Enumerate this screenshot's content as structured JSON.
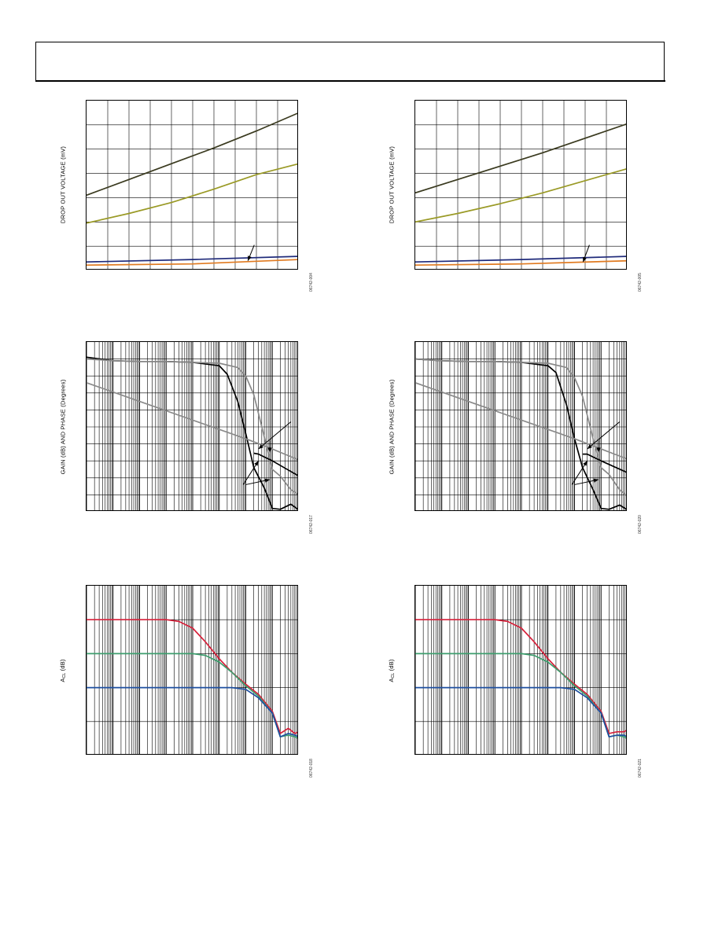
{
  "page": {
    "header": ""
  },
  "charts": [
    {
      "id": "dropout-left",
      "ylabel": "DROP OUT VOLTAGE (mV)",
      "figcode": "06742-004",
      "chart_data": {
        "type": "line",
        "grid": true,
        "xscale": "linear",
        "xlim": [
          0,
          10
        ],
        "ylim": [
          0,
          7
        ],
        "series": [
          {
            "color": "#3a3a1f",
            "x": [
              0,
              2,
              4,
              6,
              8,
              10
            ],
            "y": [
              3.1,
              3.75,
              4.4,
              5.05,
              5.75,
              6.5
            ]
          },
          {
            "color": "#9a9a26",
            "x": [
              0,
              2,
              4,
              6,
              8,
              10
            ],
            "y": [
              1.95,
              2.35,
              2.8,
              3.35,
              3.95,
              4.4
            ]
          },
          {
            "color": "#1f2a7a",
            "x": [
              0,
              5,
              10
            ],
            "y": [
              0.35,
              0.45,
              0.58
            ]
          },
          {
            "color": "#e07a20",
            "x": [
              0,
              5,
              10
            ],
            "y": [
              0.22,
              0.27,
              0.45
            ]
          }
        ],
        "annotations": [
          {
            "type": "arrow",
            "x1": 7.9,
            "y1": 1.05,
            "x2": 7.6,
            "y2": 0.4
          }
        ]
      }
    },
    {
      "id": "dropout-right",
      "ylabel": "DROP OUT VOLTAGE (mV)",
      "figcode": "06742-005",
      "chart_data": {
        "type": "line",
        "grid": true,
        "xscale": "linear",
        "xlim": [
          0,
          10
        ],
        "ylim": [
          0,
          7
        ],
        "series": [
          {
            "color": "#3a3a1f",
            "x": [
              0,
              2,
              4,
              6,
              8,
              10
            ],
            "y": [
              3.2,
              3.75,
              4.3,
              4.85,
              5.45,
              6.05
            ]
          },
          {
            "color": "#9a9a26",
            "x": [
              0,
              2,
              4,
              6,
              8,
              10
            ],
            "y": [
              2.0,
              2.35,
              2.75,
              3.2,
              3.7,
              4.2
            ]
          },
          {
            "color": "#1f2a7a",
            "x": [
              0,
              5,
              10
            ],
            "y": [
              0.35,
              0.45,
              0.58
            ]
          },
          {
            "color": "#e07a20",
            "x": [
              0,
              5,
              10
            ],
            "y": [
              0.22,
              0.27,
              0.4
            ]
          }
        ],
        "annotations": [
          {
            "type": "arrow",
            "x1": 8.2,
            "y1": 1.05,
            "x2": 7.9,
            "y2": 0.35
          }
        ]
      }
    },
    {
      "id": "gainphase-left",
      "ylabel": "GAIN (dB) AND PHASE (Degrees)",
      "figcode": "06742-017",
      "chart_data": {
        "type": "line",
        "grid": true,
        "xscale": "log",
        "xlim": [
          1,
          100000000
        ],
        "ylim": [
          0,
          10
        ],
        "series": [
          {
            "color": "#000000",
            "x": [
              1,
              10,
              100,
              1000,
              10000,
              100000,
              200000,
              500000,
              1000000,
              2000000,
              5000000,
              10000000,
              20000000,
              50000000,
              100000000
            ],
            "y": [
              9.1,
              8.9,
              8.85,
              8.85,
              8.8,
              8.6,
              8.1,
              6.5,
              4.6,
              2.6,
              1.4,
              0.2,
              0.15,
              0.45,
              0.1
            ]
          },
          {
            "color": "#8a8a8a",
            "x": [
              1,
              10,
              100,
              1000,
              10000,
              100000,
              500000,
              1000000,
              2000000,
              5000000,
              10000000,
              20000000,
              50000000,
              100000000
            ],
            "y": [
              9.0,
              8.9,
              8.85,
              8.85,
              8.8,
              8.75,
              8.5,
              8.0,
              6.9,
              4.4,
              2.5,
              2.1,
              1.3,
              1.0
            ]
          },
          {
            "color": "#8a8a8a",
            "x": [
              1,
              1000000,
              10000000,
              100000000
            ],
            "y": [
              7.6,
              4.3,
              3.7,
              3.05
            ]
          },
          {
            "color": "#000000",
            "x": [
              2000000,
              3000000,
              10000000,
              100000000
            ],
            "y": [
              3.45,
              3.4,
              3.0,
              2.1
            ]
          }
        ],
        "annotations": [
          {
            "type": "arrow",
            "x1": 50000000,
            "y1": 5.3,
            "x2": 3000000,
            "y2": 3.7
          },
          {
            "type": "arrow",
            "x1": 8000000,
            "y1": 4.2,
            "x2": 8000000,
            "y2": 3.5
          },
          {
            "type": "arrow",
            "x1": 800000,
            "y1": 1.6,
            "x2": 3000000,
            "y2": 3.0
          },
          {
            "type": "arrow",
            "x1": 1000000,
            "y1": 1.6,
            "x2": 8000000,
            "y2": 1.9
          }
        ]
      }
    },
    {
      "id": "gainphase-right",
      "ylabel": "GAIN (dB) AND PHASE (Degrees)",
      "figcode": "06742-020",
      "chart_data": {
        "type": "line",
        "grid": true,
        "xscale": "log",
        "xlim": [
          1,
          100000000
        ],
        "ylim": [
          0,
          10
        ],
        "series": [
          {
            "color": "#000000",
            "x": [
              1,
              10,
              100,
              1000,
              10000,
              100000,
              200000,
              500000,
              1000000,
              2000000,
              5000000,
              10000000,
              20000000,
              50000000,
              100000000
            ],
            "y": [
              9.0,
              8.9,
              8.85,
              8.85,
              8.8,
              8.6,
              8.2,
              6.3,
              4.3,
              2.6,
              1.3,
              0.2,
              0.15,
              0.4,
              0.1
            ]
          },
          {
            "color": "#8a8a8a",
            "x": [
              1,
              10,
              100,
              1000,
              10000,
              100000,
              500000,
              1000000,
              2000000,
              5000000,
              10000000,
              20000000,
              50000000,
              100000000
            ],
            "y": [
              9.0,
              8.9,
              8.85,
              8.85,
              8.8,
              8.75,
              8.5,
              7.9,
              6.8,
              4.3,
              2.6,
              2.2,
              1.3,
              0.9
            ]
          },
          {
            "color": "#8a8a8a",
            "x": [
              1,
              1000000,
              10000000,
              100000000
            ],
            "y": [
              7.6,
              4.3,
              3.7,
              3.1
            ]
          },
          {
            "color": "#000000",
            "x": [
              2000000,
              3000000,
              10000000,
              100000000
            ],
            "y": [
              3.4,
              3.4,
              3.0,
              2.3
            ]
          }
        ],
        "annotations": [
          {
            "type": "arrow",
            "x1": 50000000,
            "y1": 5.3,
            "x2": 3000000,
            "y2": 3.7
          },
          {
            "type": "arrow",
            "x1": 8000000,
            "y1": 4.2,
            "x2": 8000000,
            "y2": 3.5
          },
          {
            "type": "arrow",
            "x1": 800000,
            "y1": 1.6,
            "x2": 3000000,
            "y2": 3.0
          },
          {
            "type": "arrow",
            "x1": 1000000,
            "y1": 1.6,
            "x2": 8000000,
            "y2": 1.9
          }
        ]
      }
    },
    {
      "id": "acl-left",
      "ylabel": "A",
      "ylabel_sub": "CL",
      "ylabel_suffix": " (dB)",
      "figcode": "06742-018",
      "chart_data": {
        "type": "line",
        "grid": true,
        "xscale": "log",
        "xlim": [
          1,
          100000000
        ],
        "ylim": [
          0,
          5
        ],
        "series": [
          {
            "color": "#d6203a",
            "x": [
              1,
              100,
              1000,
              3000,
              10000,
              30000,
              100000,
              300000,
              1000000,
              3000000,
              10000000,
              20000000,
              40000000,
              70000000,
              100000000
            ],
            "y": [
              4.0,
              4.0,
              4.0,
              3.95,
              3.75,
              3.35,
              2.85,
              2.45,
              2.1,
              1.8,
              1.3,
              0.65,
              0.8,
              0.65,
              0.7
            ]
          },
          {
            "color": "#3d9e6e",
            "x": [
              1,
              1000,
              10000,
              30000,
              100000,
              300000,
              1000000,
              3000000,
              10000000,
              20000000,
              40000000,
              70000000,
              100000000
            ],
            "y": [
              3.0,
              3.0,
              3.0,
              2.95,
              2.75,
              2.45,
              2.05,
              1.75,
              1.25,
              0.55,
              0.6,
              0.55,
              0.5
            ]
          },
          {
            "color": "#1e4fa0",
            "x": [
              1,
              10000,
              100000,
              300000,
              1000000,
              3000000,
              10000000,
              20000000,
              40000000,
              70000000,
              100000000
            ],
            "y": [
              2.0,
              2.0,
              2.0,
              2.0,
              1.95,
              1.7,
              1.25,
              0.55,
              0.65,
              0.6,
              0.55
            ]
          }
        ]
      }
    },
    {
      "id": "acl-right",
      "ylabel": "A",
      "ylabel_sub": "CL",
      "ylabel_suffix": " (dB)",
      "figcode": "06742-021",
      "chart_data": {
        "type": "line",
        "grid": true,
        "xscale": "log",
        "xlim": [
          1,
          100000000
        ],
        "ylim": [
          0,
          5
        ],
        "series": [
          {
            "color": "#d6203a",
            "x": [
              1,
              100,
              1000,
              3000,
              10000,
              30000,
              100000,
              300000,
              1000000,
              3000000,
              10000000,
              20000000,
              40000000,
              70000000,
              100000000
            ],
            "y": [
              4.0,
              4.0,
              4.0,
              3.95,
              3.75,
              3.35,
              2.85,
              2.45,
              2.1,
              1.8,
              1.3,
              0.65,
              0.7,
              0.7,
              0.75
            ]
          },
          {
            "color": "#3d9e6e",
            "x": [
              1,
              1000,
              10000,
              30000,
              100000,
              300000,
              1000000,
              3000000,
              10000000,
              20000000,
              40000000,
              70000000,
              100000000
            ],
            "y": [
              3.0,
              3.0,
              3.0,
              2.95,
              2.75,
              2.45,
              2.05,
              1.75,
              1.25,
              0.55,
              0.6,
              0.55,
              0.5
            ]
          },
          {
            "color": "#1e4fa0",
            "x": [
              1,
              10000,
              100000,
              300000,
              1000000,
              3000000,
              10000000,
              20000000,
              40000000,
              70000000,
              100000000
            ],
            "y": [
              2.0,
              2.0,
              2.0,
              2.0,
              1.95,
              1.7,
              1.25,
              0.55,
              0.6,
              0.6,
              0.55
            ]
          }
        ]
      }
    }
  ]
}
